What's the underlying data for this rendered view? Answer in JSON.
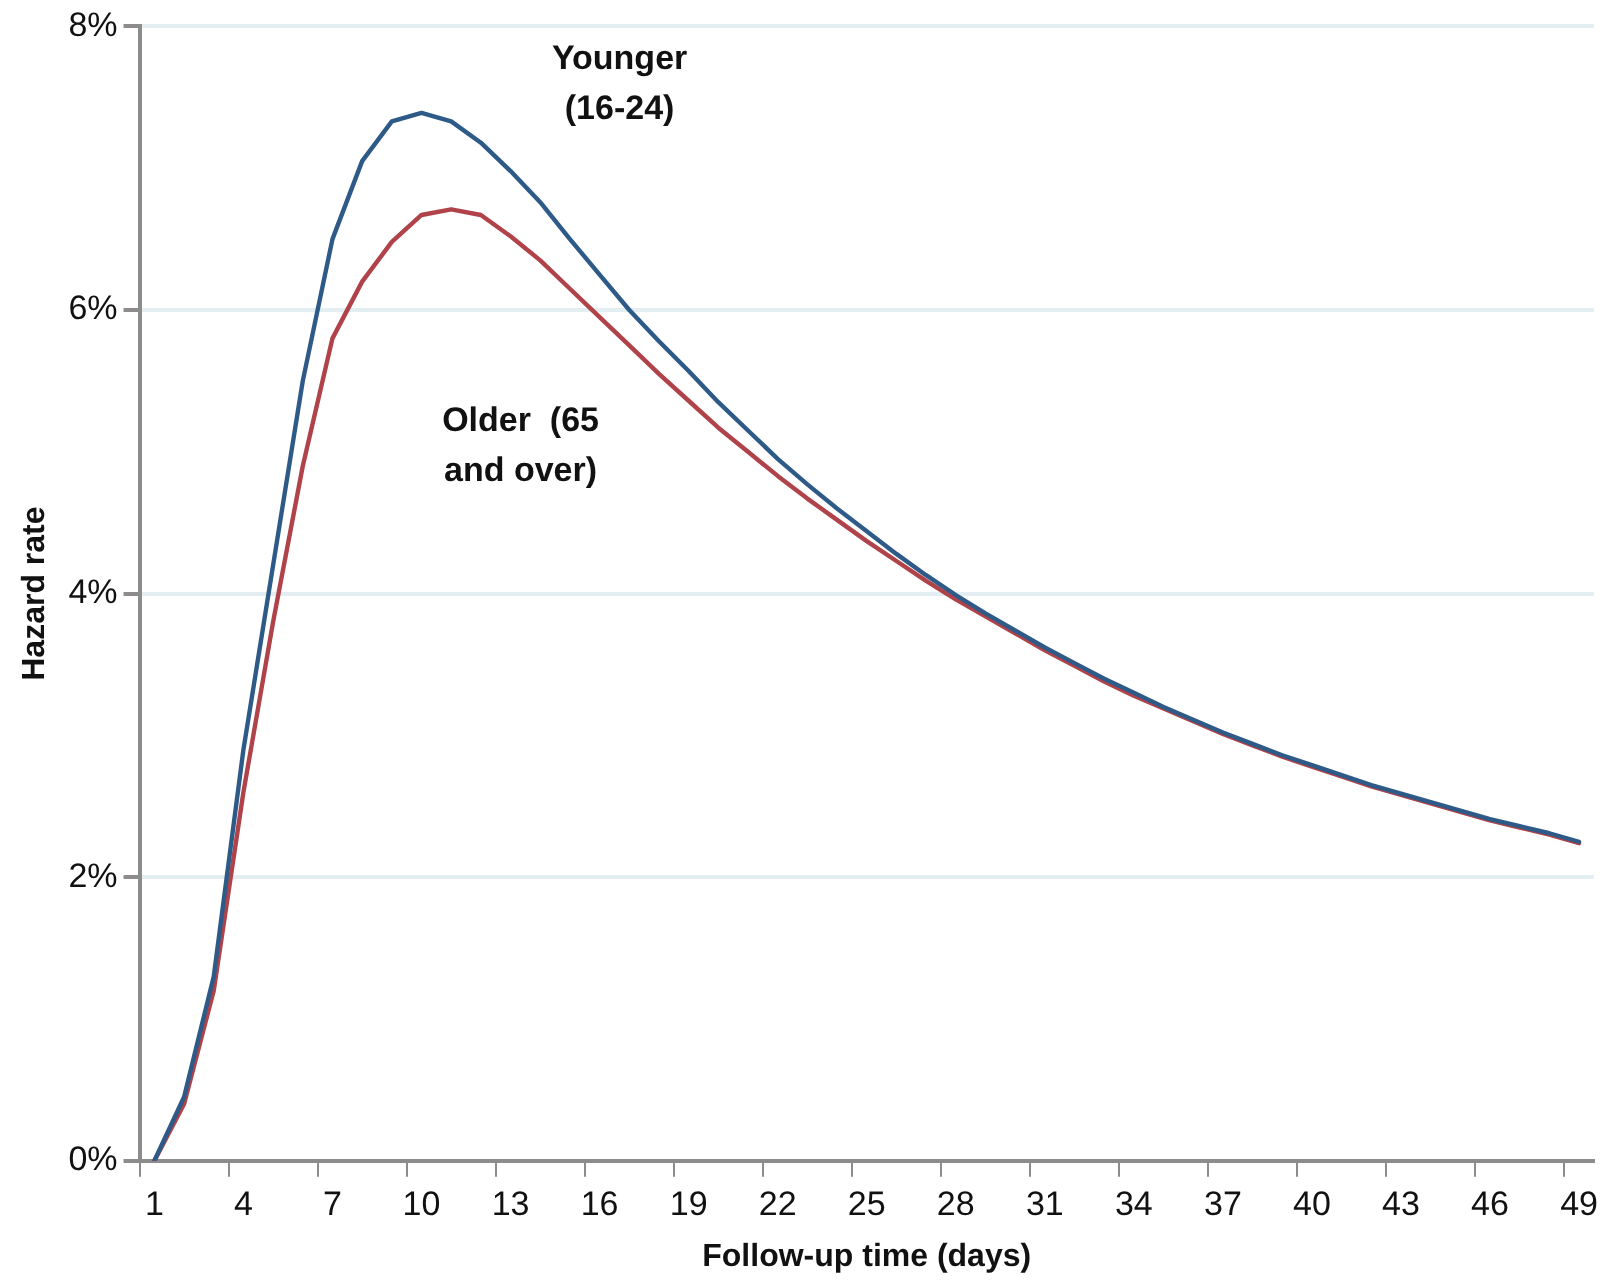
{
  "chart_data": {
    "type": "line",
    "xlabel": "Follow-up time (days)",
    "ylabel": "Hazard rate",
    "categories": [
      "1",
      null,
      null,
      "4",
      null,
      null,
      "7",
      null,
      null,
      "10",
      null,
      null,
      "13",
      null,
      null,
      "16",
      null,
      null,
      "19",
      null,
      null,
      "22",
      null,
      null,
      "25",
      null,
      null,
      "28",
      null,
      null,
      "31",
      null,
      null,
      "34",
      null,
      null,
      "37",
      null,
      null,
      "40",
      null,
      null,
      "43",
      null,
      null,
      "46",
      null,
      null,
      "49"
    ],
    "series": [
      {
        "name": "Younger (16-24)",
        "color": "#2e5a88",
        "values": [
          0,
          0.45,
          1.3,
          2.9,
          4.2,
          5.5,
          6.5,
          7.05,
          7.33,
          7.39,
          7.33,
          7.18,
          6.98,
          6.76,
          6.5,
          6.25,
          6.0,
          5.78,
          5.57,
          5.35,
          5.15,
          4.95,
          4.77,
          4.6,
          4.44,
          4.28,
          4.13,
          3.99,
          3.86,
          3.74,
          3.62,
          3.51,
          3.4,
          3.3,
          3.2,
          3.11,
          3.02,
          2.94,
          2.86,
          2.79,
          2.72,
          2.65,
          2.59,
          2.53,
          2.47,
          2.41,
          2.36,
          2.31,
          2.25
        ]
      },
      {
        "name": "Older  (65 and over)",
        "color": "#b0424a",
        "values": [
          0,
          0.4,
          1.2,
          2.6,
          3.8,
          4.9,
          5.8,
          6.2,
          6.48,
          6.67,
          6.71,
          6.67,
          6.52,
          6.35,
          6.15,
          5.95,
          5.75,
          5.55,
          5.36,
          5.17,
          5.0,
          4.83,
          4.67,
          4.52,
          4.37,
          4.23,
          4.09,
          3.96,
          3.84,
          3.72,
          3.6,
          3.49,
          3.38,
          3.28,
          3.19,
          3.1,
          3.01,
          2.93,
          2.85,
          2.78,
          2.71,
          2.64,
          2.58,
          2.52,
          2.46,
          2.4,
          2.35,
          2.3,
          2.24
        ]
      }
    ],
    "ylim": [
      0,
      8
    ],
    "yticks": [
      {
        "value": 0,
        "label": "0%"
      },
      {
        "value": 2,
        "label": "2%"
      },
      {
        "value": 4,
        "label": "4%"
      },
      {
        "value": 6,
        "label": "6%"
      },
      {
        "value": 8,
        "label": "8%"
      }
    ],
    "grid": "y",
    "legend": false,
    "marker": "none",
    "line_style": "solid"
  }
}
